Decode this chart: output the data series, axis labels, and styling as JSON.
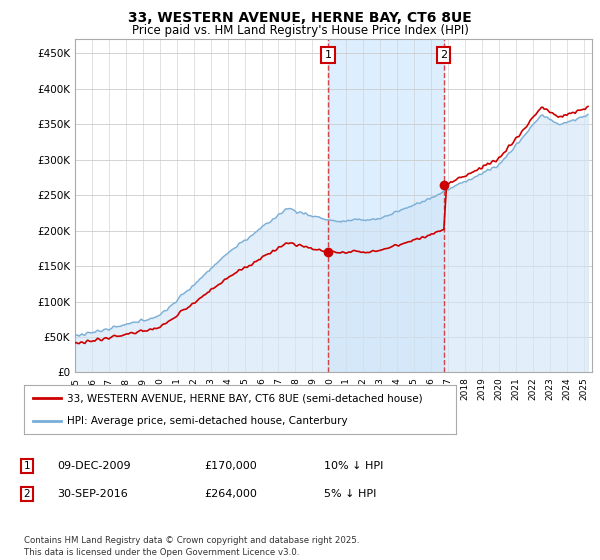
{
  "title_line1": "33, WESTERN AVENUE, HERNE BAY, CT6 8UE",
  "title_line2": "Price paid vs. HM Land Registry's House Price Index (HPI)",
  "ylabel_ticks": [
    "£0",
    "£50K",
    "£100K",
    "£150K",
    "£200K",
    "£250K",
    "£300K",
    "£350K",
    "£400K",
    "£450K"
  ],
  "ytick_values": [
    0,
    50000,
    100000,
    150000,
    200000,
    250000,
    300000,
    350000,
    400000,
    450000
  ],
  "ylim": [
    0,
    470000
  ],
  "xlim_start": 1995.0,
  "xlim_end": 2025.5,
  "hpi_color": "#7aaed6",
  "hpi_fill_color": "#d0e4f5",
  "price_color": "#cc0000",
  "vline_color": "#cc0000",
  "sale1_year": 2009.92,
  "sale1_price": 170000,
  "sale1_label": "1",
  "sale2_year": 2016.75,
  "sale2_price": 264000,
  "sale2_label": "2",
  "legend_line1": "33, WESTERN AVENUE, HERNE BAY, CT6 8UE (semi-detached house)",
  "legend_line2": "HPI: Average price, semi-detached house, Canterbury",
  "table_row1": [
    "1",
    "09-DEC-2009",
    "£170,000",
    "10% ↓ HPI"
  ],
  "table_row2": [
    "2",
    "30-SEP-2016",
    "£264,000",
    "5% ↓ HPI"
  ],
  "footer": "Contains HM Land Registry data © Crown copyright and database right 2025.\nThis data is licensed under the Open Government Licence v3.0.",
  "grid_color": "#cccccc",
  "span_color": "#ddeeff"
}
